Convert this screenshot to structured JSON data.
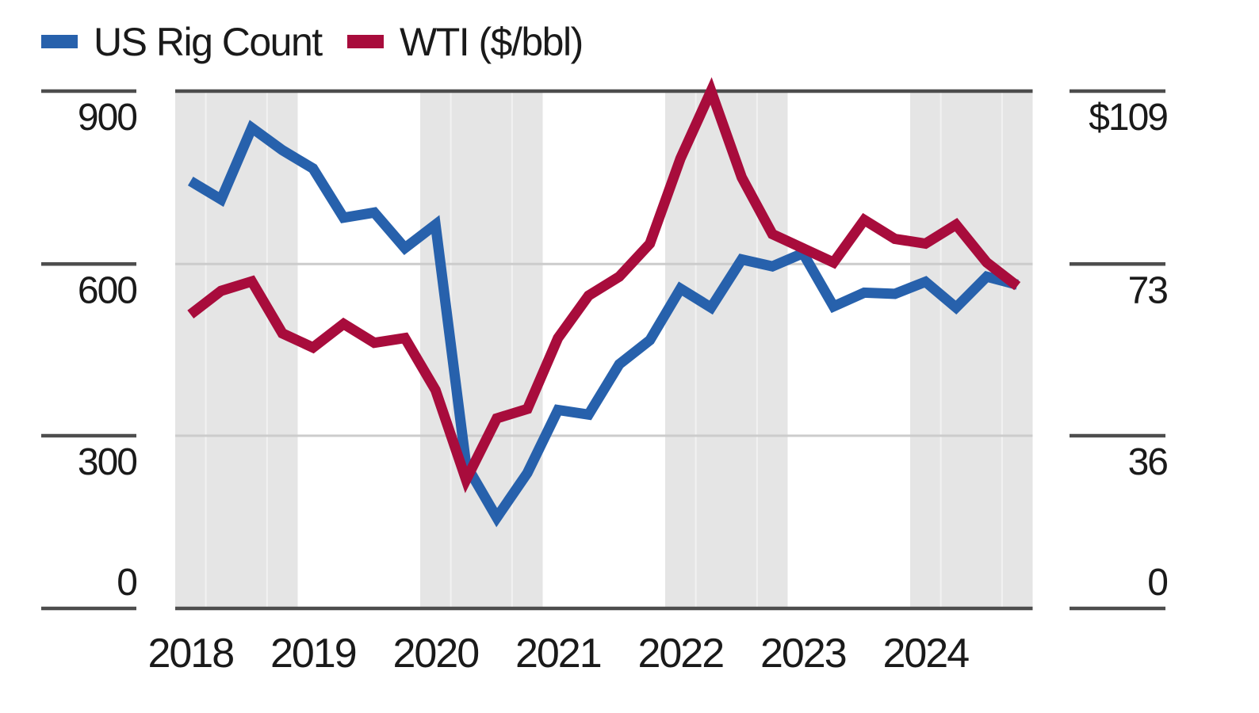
{
  "legend": [
    {
      "label": "US Rig Count",
      "color": "#2761AC"
    },
    {
      "label": "WTI ($/bbl)",
      "color": "#A80C3C"
    }
  ],
  "colors": {
    "rig_line": "#2761AC",
    "wti_line": "#A80C3C",
    "year_band": "#E5E5E5",
    "band_quarter_line": "#F2F2F2",
    "gridline": "#CCCCCC",
    "axis_line": "#4D4D4D",
    "text": "#1A1A1A",
    "background": "#FFFFFF"
  },
  "chart_data": {
    "type": "line",
    "title": "",
    "x": [
      "2018 Q1",
      "2018 Q2",
      "2018 Q3",
      "2018 Q4",
      "2019 Q1",
      "2019 Q2",
      "2019 Q3",
      "2019 Q4",
      "2020 Q1",
      "2020 Q2",
      "2020 Q3",
      "2020 Q4",
      "2021 Q1",
      "2021 Q2",
      "2021 Q3",
      "2021 Q4",
      "2022 Q1",
      "2022 Q2",
      "2022 Q3",
      "2022 Q4",
      "2023 Q1",
      "2023 Q2",
      "2023 Q3",
      "2023 Q4",
      "2024 Q1",
      "2024 Q2",
      "2024 Q3",
      "2024 Q4"
    ],
    "x_year_labels": [
      "2018",
      "2019",
      "2020",
      "2021",
      "2022",
      "2023",
      "2024"
    ],
    "shaded_years": [
      "2018",
      "2020",
      "2022",
      "2024"
    ],
    "series": [
      {
        "name": "US Rig Count",
        "axis": "left",
        "color": "#2761AC",
        "values": [
          745,
          713,
          838,
          799,
          767,
          681,
          690,
          628,
          669,
          249,
          157,
          235,
          345,
          337,
          425,
          467,
          557,
          524,
          608,
          596,
          619,
          526,
          550,
          548,
          569,
          524,
          578,
          564
        ]
      },
      {
        "name": "WTI ($/bbl)",
        "axis": "right",
        "color": "#A80C3C",
        "values": [
          62,
          67,
          69,
          58,
          55,
          60,
          56,
          57,
          46,
          27,
          40,
          42,
          57,
          66,
          70,
          77,
          95,
          109.3,
          91,
          79,
          76,
          73,
          82,
          78,
          77,
          81,
          73,
          68
        ]
      }
    ],
    "left_axis": {
      "tick_labels": [
        "900",
        "600",
        "300",
        "0"
      ],
      "tick_values": [
        900,
        600,
        300,
        0
      ],
      "range": [
        0,
        900
      ]
    },
    "right_axis": {
      "tick_labels": [
        "$109",
        "73",
        "36",
        "0"
      ],
      "tick_values": [
        109,
        73,
        36,
        0
      ],
      "range": [
        0,
        109
      ]
    },
    "grid": "horizontal",
    "legend_position": "top-left"
  }
}
